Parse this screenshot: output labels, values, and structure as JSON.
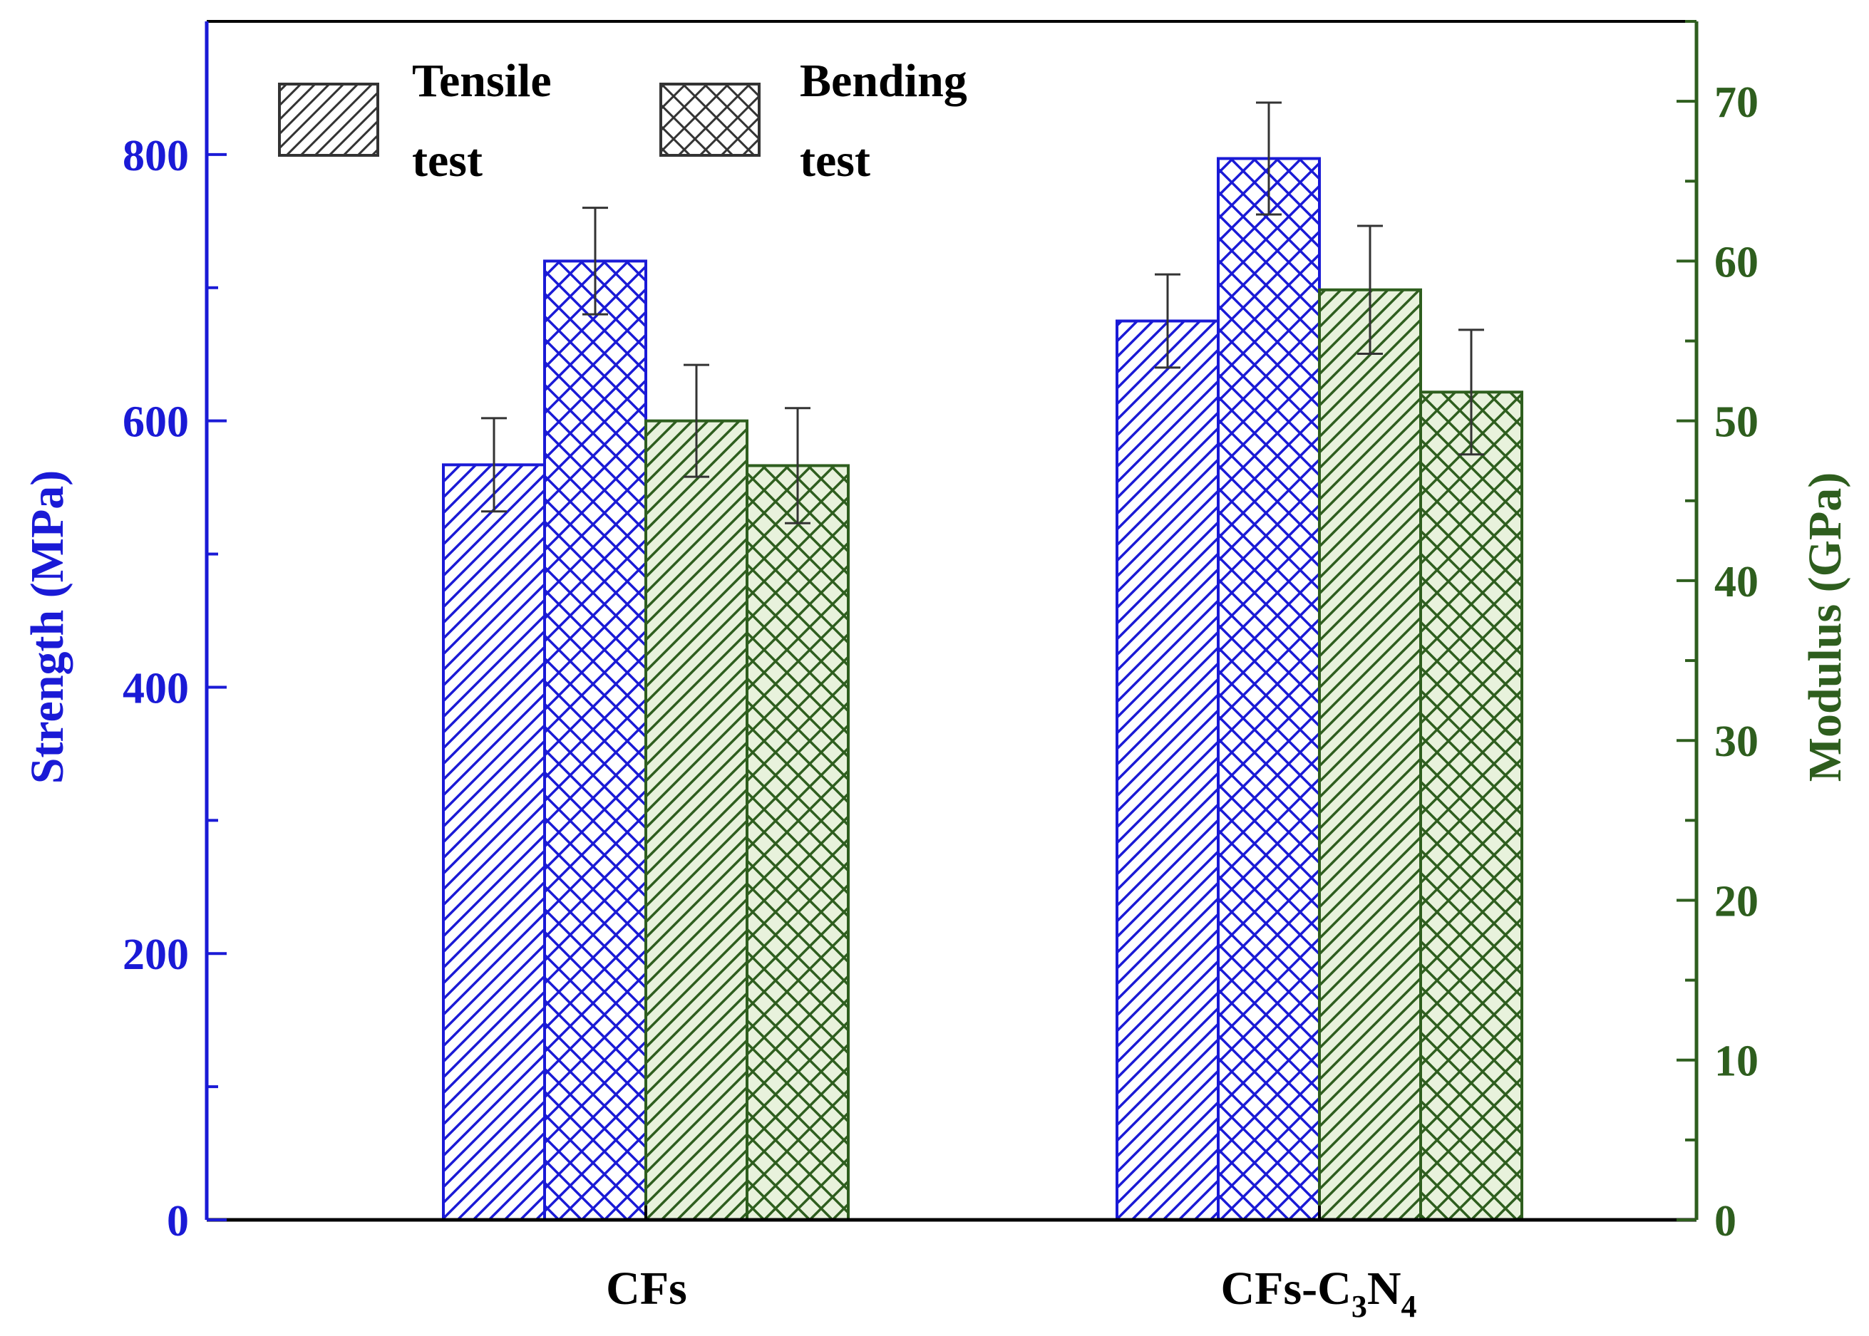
{
  "chart_data": {
    "type": "bar",
    "categories": [
      "CFs",
      "CFs-C3N4"
    ],
    "category_labels": [
      {
        "main": "CFs",
        "sub": ""
      },
      {
        "main": "CFs-C",
        "sub3": "3",
        "mid": "N",
        "sub4": "4"
      }
    ],
    "series": [
      {
        "name": "Tensile strength",
        "axis": "left",
        "test": "tensile",
        "color": "#1a1ad6",
        "pattern": "diag",
        "values": [
          567,
          675
        ],
        "errors": [
          35,
          35
        ]
      },
      {
        "name": "Bending strength",
        "axis": "left",
        "test": "bending",
        "color": "#1a1ad6",
        "pattern": "cross",
        "values": [
          720,
          797
        ],
        "errors": [
          40,
          42
        ]
      },
      {
        "name": "Tensile modulus",
        "axis": "right",
        "test": "tensile",
        "color": "#2e5e1e",
        "pattern": "diag",
        "values": [
          50,
          58.2
        ],
        "errors": [
          3.5,
          4
        ]
      },
      {
        "name": "Bending modulus",
        "axis": "right",
        "test": "bending",
        "color": "#2e5e1e",
        "pattern": "cross",
        "values": [
          47.2,
          51.8
        ],
        "errors": [
          3.6,
          3.9
        ]
      }
    ],
    "ylabel_left": "Strength (MPa)",
    "ylabel_right": "Modulus (GPa)",
    "ylim_left": [
      0,
      900
    ],
    "ylim_right": [
      0,
      75
    ],
    "yticks_left": [
      "0",
      "200",
      "400",
      "600",
      "800"
    ],
    "yticks_right": [
      "0",
      "10",
      "20",
      "30",
      "40",
      "50",
      "60",
      "70"
    ],
    "left_axis_color": "#1a1ad6",
    "right_axis_color": "#2e5e1e",
    "legend": [
      {
        "line1": "Tensile",
        "line2": "test",
        "pattern": "diag"
      },
      {
        "line1": "Bending",
        "line2": "test",
        "pattern": "cross"
      }
    ],
    "legend_position": "top-left"
  }
}
